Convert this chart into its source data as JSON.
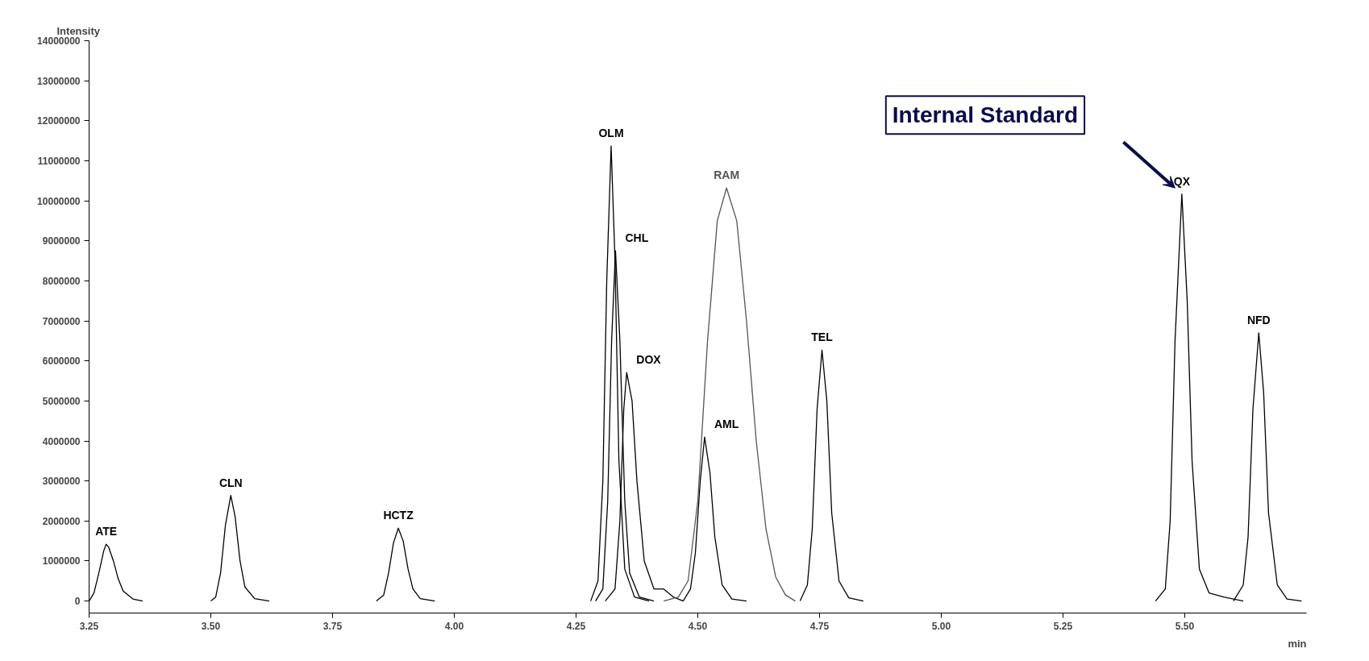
{
  "chart_data": {
    "type": "line",
    "xlabel": "min",
    "ylabel": "Intensity",
    "xlim": [
      3.25,
      5.75
    ],
    "ylim": [
      -300000,
      14000000
    ],
    "xticks": [
      {
        "value": 3.25,
        "label": "3.25"
      },
      {
        "value": 3.5,
        "label": "3.50"
      },
      {
        "value": 3.75,
        "label": "3.75"
      },
      {
        "value": 4.0,
        "label": "4.00"
      },
      {
        "value": 4.25,
        "label": "4.25"
      },
      {
        "value": 4.5,
        "label": "4.50"
      },
      {
        "value": 4.75,
        "label": "4.75"
      },
      {
        "value": 5.0,
        "label": "5.00"
      },
      {
        "value": 5.25,
        "label": "5.25"
      },
      {
        "value": 5.5,
        "label": "5.50"
      }
    ],
    "yticks": [
      0,
      1000000,
      2000000,
      3000000,
      4000000,
      5000000,
      6000000,
      7000000,
      8000000,
      9000000,
      10000000,
      11000000,
      12000000,
      13000000,
      14000000
    ],
    "grid": false,
    "legend": false,
    "marker": "none",
    "line_style": "solid",
    "annotations": [
      "Internal Standard"
    ],
    "series": [
      {
        "name": "ATE",
        "color": "#000000",
        "x": [
          3.25,
          3.26,
          3.27,
          3.28,
          3.285,
          3.29,
          3.3,
          3.31,
          3.32,
          3.34,
          3.36
        ],
        "values": [
          0,
          200000,
          700000,
          1250000,
          1420000,
          1350000,
          1000000,
          550000,
          250000,
          50000,
          0
        ]
      },
      {
        "name": "CLN",
        "color": "#000000",
        "x": [
          3.5,
          3.51,
          3.52,
          3.53,
          3.541,
          3.55,
          3.56,
          3.57,
          3.59,
          3.62
        ],
        "values": [
          0,
          100000,
          700000,
          1900000,
          2640000,
          2100000,
          1000000,
          350000,
          60000,
          0
        ]
      },
      {
        "name": "HCTZ",
        "color": "#000000",
        "x": [
          3.84,
          3.855,
          3.865,
          3.875,
          3.885,
          3.895,
          3.905,
          3.915,
          3.93,
          3.96
        ],
        "values": [
          0,
          150000,
          700000,
          1450000,
          1820000,
          1500000,
          800000,
          300000,
          60000,
          0
        ]
      },
      {
        "name": "OLM",
        "color": "#000000",
        "x": [
          4.28,
          4.295,
          4.305,
          4.313,
          4.322,
          4.33,
          4.338,
          4.35,
          4.37,
          4.4
        ],
        "values": [
          0,
          500000,
          3000000,
          8000000,
          11370000,
          8500000,
          3500000,
          800000,
          100000,
          0
        ]
      },
      {
        "name": "CHL",
        "color": "#000000",
        "x": [
          4.29,
          4.305,
          4.315,
          4.323,
          4.331,
          4.34,
          4.35,
          4.36,
          4.38,
          4.41
        ],
        "values": [
          0,
          300000,
          2500000,
          6500000,
          8750000,
          6500000,
          2500000,
          700000,
          100000,
          0
        ]
      },
      {
        "name": "DOX",
        "color": "#000000",
        "x": [
          4.31,
          4.33,
          4.34,
          4.348,
          4.354,
          4.365,
          4.375,
          4.39,
          4.41,
          4.43,
          4.45,
          4.47
        ],
        "values": [
          0,
          300000,
          2000000,
          4800000,
          5710000,
          5000000,
          3000000,
          1000000,
          300000,
          300000,
          100000,
          0
        ]
      },
      {
        "name": "AML",
        "color": "#000000",
        "x": [
          4.47,
          4.485,
          4.495,
          4.505,
          4.514,
          4.525,
          4.535,
          4.55,
          4.57,
          4.6
        ],
        "values": [
          0,
          300000,
          1200000,
          3000000,
          4100000,
          3200000,
          1600000,
          400000,
          50000,
          0
        ]
      },
      {
        "name": "RAM",
        "color": "#555555",
        "x": [
          4.43,
          4.46,
          4.48,
          4.5,
          4.52,
          4.54,
          4.559,
          4.58,
          4.6,
          4.62,
          4.64,
          4.66,
          4.68,
          4.7
        ],
        "values": [
          0,
          100000,
          500000,
          2500000,
          6500000,
          9500000,
          10320000,
          9500000,
          7000000,
          4000000,
          1800000,
          600000,
          150000,
          0
        ]
      },
      {
        "name": "TEL",
        "color": "#000000",
        "x": [
          4.71,
          4.725,
          4.735,
          4.745,
          4.755,
          4.765,
          4.775,
          4.79,
          4.81,
          4.84
        ],
        "values": [
          0,
          400000,
          1800000,
          4800000,
          6270000,
          5000000,
          2200000,
          500000,
          80000,
          0
        ]
      },
      {
        "name": "QX",
        "color": "#000000",
        "x": [
          5.44,
          5.46,
          5.47,
          5.48,
          5.494,
          5.505,
          5.515,
          5.53,
          5.55,
          5.58,
          5.62
        ],
        "values": [
          0,
          300000,
          2000000,
          6500000,
          10170000,
          7500000,
          3500000,
          800000,
          200000,
          100000,
          0
        ]
      },
      {
        "name": "NFD",
        "color": "#000000",
        "x": [
          5.6,
          5.62,
          5.63,
          5.64,
          5.652,
          5.662,
          5.672,
          5.69,
          5.71,
          5.74
        ],
        "values": [
          0,
          400000,
          1600000,
          4800000,
          6700000,
          5200000,
          2200000,
          400000,
          50000,
          0
        ]
      }
    ]
  }
}
